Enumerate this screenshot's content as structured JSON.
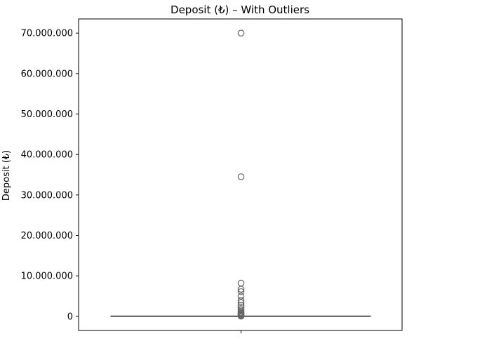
{
  "chart_data": {
    "type": "box",
    "title": "Deposit (₺) – With Outliers",
    "xlabel": "",
    "ylabel": "Deposit (₺)",
    "ylim": [
      -3500000,
      73500000
    ],
    "y_ticks": [
      0,
      10000000,
      20000000,
      30000000,
      40000000,
      50000000,
      60000000,
      70000000
    ],
    "y_tick_labels": [
      "0",
      "10.000.000",
      "20.000.000",
      "30.000.000",
      "40.000.000",
      "50.000.000",
      "60.000.000",
      "70.000.000"
    ],
    "grid": false,
    "box": {
      "q1": 0,
      "median": 0,
      "q3": 10000,
      "whisker_low": 0,
      "whisker_high": 25000
    },
    "outliers": [
      70000000,
      34500000,
      8200000,
      6700000,
      6100000,
      5000000,
      4000000,
      3400000,
      2700000,
      2200000,
      1700000,
      1300000,
      1000000,
      800000,
      600000,
      400000,
      250000,
      150000,
      80000,
      40000
    ],
    "colors": {
      "box_line": "#666666",
      "frame": "#000000",
      "outlier_edge": "#666666"
    }
  }
}
